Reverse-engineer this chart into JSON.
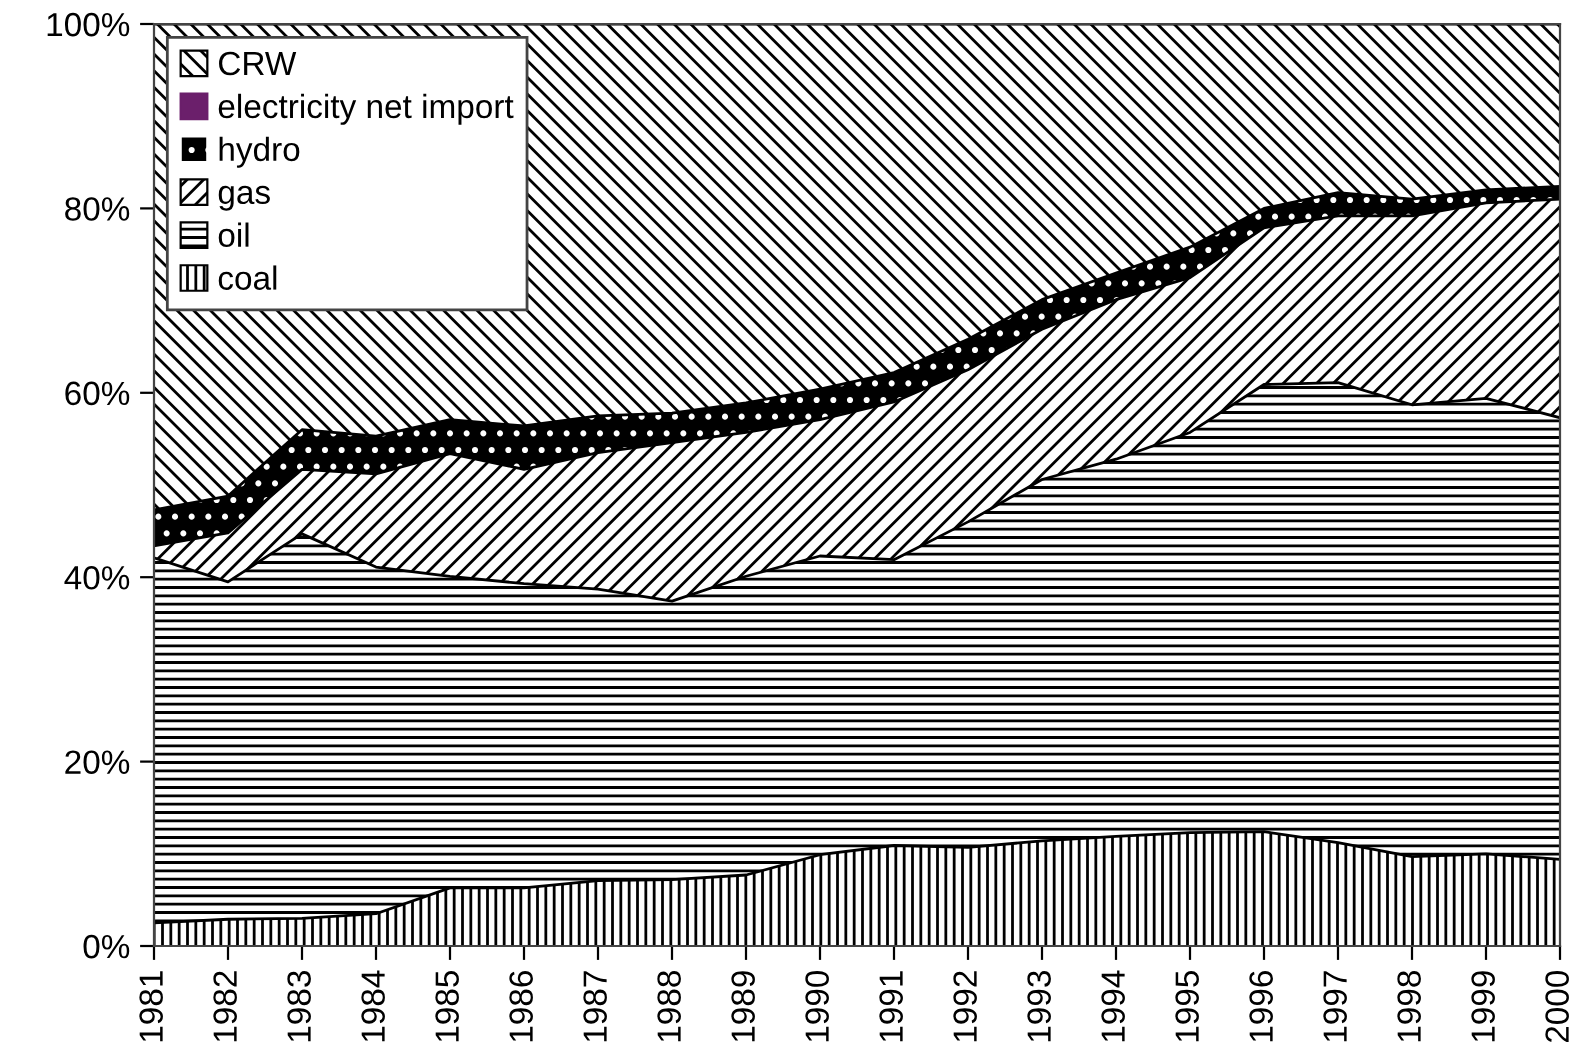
{
  "chart_data": {
    "type": "area",
    "stacked": true,
    "categories": [
      "1981",
      "1982",
      "1983",
      "1984",
      "1985",
      "1986",
      "1987",
      "1988",
      "1989",
      "1990",
      "1991",
      "1992",
      "1993",
      "1994",
      "1995",
      "1996",
      "1997",
      "1998",
      "1999",
      "2000"
    ],
    "series": [
      {
        "name": "coal",
        "color": "#ffffff",
        "values": [
          2.5,
          2.9,
          3.0,
          3.5,
          6.3,
          6.3,
          7.1,
          7.2,
          7.7,
          9.9,
          10.9,
          10.7,
          11.4,
          11.9,
          12.3,
          12.4,
          11.2,
          9.7,
          10.0,
          9.4
        ]
      },
      {
        "name": "oil",
        "color": "#ffffff",
        "values": [
          39.6,
          36.6,
          41.7,
          37.6,
          33.8,
          33.0,
          31.6,
          30.2,
          32.4,
          32.4,
          31.0,
          35.3,
          39.2,
          40.9,
          43.4,
          48.5,
          49.9,
          49.0,
          49.4,
          47.9
        ]
      },
      {
        "name": "gas",
        "color": "#ffffff",
        "values": [
          1.3,
          5.3,
          7.0,
          10.1,
          13.3,
          12.4,
          14.8,
          17.2,
          15.6,
          14.8,
          17.1,
          16.5,
          16.3,
          17.3,
          16.8,
          17.0,
          18.1,
          20.5,
          21.2,
          23.7
        ]
      },
      {
        "name": "hydro",
        "color": "#000000",
        "values": [
          3.9,
          4.0,
          4.3,
          4.1,
          3.7,
          4.7,
          4.0,
          3.2,
          3.2,
          3.3,
          3.2,
          3.3,
          3.2,
          2.9,
          3.3,
          2.1,
          2.5,
          1.8,
          1.4,
          1.4
        ]
      },
      {
        "name": "electricity net import",
        "color": "#6b1f6b",
        "values": [
          null,
          null,
          null,
          null,
          null,
          null,
          null,
          null,
          null,
          null,
          null,
          null,
          null,
          null,
          null,
          null,
          null,
          null,
          null,
          null
        ]
      },
      {
        "name": "CRW",
        "color": "#ffffff",
        "values": [
          52.7,
          51.2,
          44.0,
          44.7,
          42.9,
          43.6,
          42.5,
          42.2,
          41.1,
          39.6,
          37.8,
          34.2,
          29.9,
          27.0,
          24.2,
          20.0,
          18.3,
          19.0,
          18.0,
          17.6
        ]
      }
    ],
    "ylim": [
      0,
      100
    ],
    "yticks": [
      {
        "value": 0,
        "label": "0%"
      },
      {
        "value": 20,
        "label": "20%"
      },
      {
        "value": 40,
        "label": "40%"
      },
      {
        "value": 60,
        "label": "60%"
      },
      {
        "value": 80,
        "label": "80%"
      },
      {
        "value": 100,
        "label": "100%"
      }
    ],
    "grid": false,
    "legend": "top left"
  }
}
